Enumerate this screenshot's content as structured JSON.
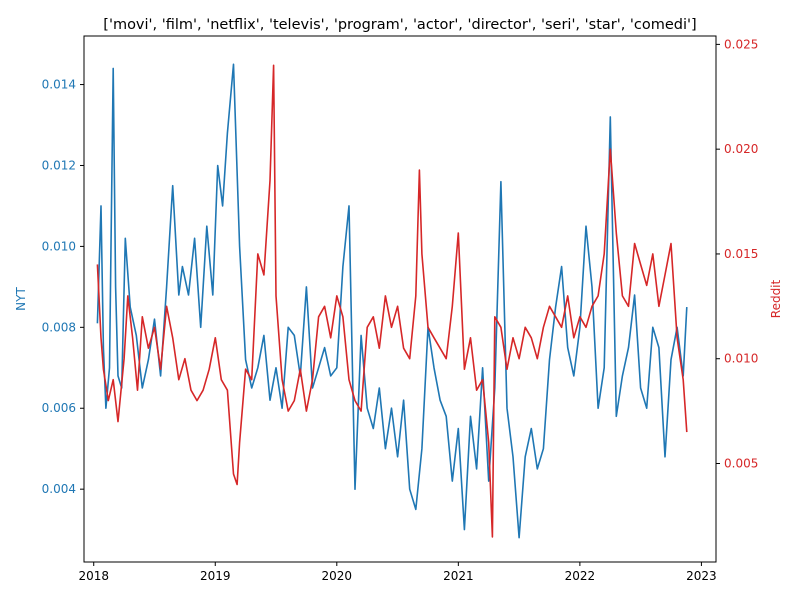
{
  "chart_data": {
    "type": "line",
    "title": "['movi', 'film', 'netflix', 'televis', 'program', 'actor', 'director', 'seri', 'star', 'comedi']",
    "xlabel": "",
    "xlim": [
      2017.92,
      2023.12
    ],
    "x_ticks": [
      "2018",
      "2019",
      "2020",
      "2021",
      "2022",
      "2023"
    ],
    "grid": false,
    "legend": "none",
    "y_axes": {
      "left": {
        "label": "NYT",
        "color": "#1f77b4",
        "ylim": [
          0.0022,
          0.0152
        ],
        "ticks": [
          "0.004",
          "0.006",
          "0.008",
          "0.010",
          "0.012",
          "0.014"
        ]
      },
      "right": {
        "label": "Reddit",
        "color": "#d62728",
        "ylim": [
          0.0003,
          0.0254
        ],
        "ticks": [
          "0.005",
          "0.010",
          "0.015",
          "0.020",
          "0.025"
        ]
      }
    },
    "series": [
      {
        "axis": "left",
        "color": "#1f77b4",
        "x": [
          2018.03,
          2018.06,
          2018.08,
          2018.1,
          2018.13,
          2018.16,
          2018.18,
          2018.2,
          2018.23,
          2018.26,
          2018.3,
          2018.35,
          2018.4,
          2018.45,
          2018.5,
          2018.55,
          2018.6,
          2018.65,
          2018.7,
          2018.73,
          2018.78,
          2018.83,
          2018.88,
          2018.93,
          2018.98,
          2019.02,
          2019.06,
          2019.1,
          2019.15,
          2019.2,
          2019.25,
          2019.3,
          2019.35,
          2019.4,
          2019.45,
          2019.5,
          2019.55,
          2019.6,
          2019.65,
          2019.7,
          2019.75,
          2019.8,
          2019.85,
          2019.9,
          2019.95,
          2020.0,
          2020.05,
          2020.1,
          2020.15,
          2020.2,
          2020.25,
          2020.3,
          2020.35,
          2020.4,
          2020.45,
          2020.5,
          2020.55,
          2020.6,
          2020.65,
          2020.7,
          2020.75,
          2020.8,
          2020.85,
          2020.9,
          2020.95,
          2021.0,
          2021.05,
          2021.1,
          2021.15,
          2021.2,
          2021.25,
          2021.3,
          2021.35,
          2021.4,
          2021.45,
          2021.5,
          2021.55,
          2021.6,
          2021.65,
          2021.7,
          2021.75,
          2021.8,
          2021.85,
          2021.9,
          2021.95,
          2022.0,
          2022.05,
          2022.1,
          2022.15,
          2022.2,
          2022.25,
          2022.3,
          2022.35,
          2022.4,
          2022.45,
          2022.5,
          2022.55,
          2022.6,
          2022.65,
          2022.7,
          2022.75,
          2022.8,
          2022.85,
          2022.88
        ],
        "values": [
          0.0081,
          0.011,
          0.0075,
          0.006,
          0.007,
          0.0144,
          0.009,
          0.0068,
          0.0065,
          0.0102,
          0.0085,
          0.0078,
          0.0065,
          0.0072,
          0.0082,
          0.0068,
          0.009,
          0.0115,
          0.0088,
          0.0095,
          0.0088,
          0.0102,
          0.008,
          0.0105,
          0.0088,
          0.012,
          0.011,
          0.0128,
          0.0145,
          0.01,
          0.0072,
          0.0065,
          0.007,
          0.0078,
          0.0062,
          0.007,
          0.006,
          0.008,
          0.0078,
          0.0068,
          0.009,
          0.0065,
          0.007,
          0.0075,
          0.0068,
          0.007,
          0.0095,
          0.011,
          0.004,
          0.0078,
          0.006,
          0.0055,
          0.0065,
          0.005,
          0.006,
          0.0048,
          0.0062,
          0.004,
          0.0035,
          0.005,
          0.008,
          0.007,
          0.0062,
          0.0058,
          0.0042,
          0.0055,
          0.003,
          0.0058,
          0.0045,
          0.007,
          0.0042,
          0.0065,
          0.0116,
          0.006,
          0.0048,
          0.0028,
          0.0048,
          0.0055,
          0.0045,
          0.005,
          0.0072,
          0.0085,
          0.0095,
          0.0075,
          0.0068,
          0.008,
          0.0105,
          0.009,
          0.006,
          0.007,
          0.0132,
          0.0058,
          0.0068,
          0.0075,
          0.0088,
          0.0065,
          0.006,
          0.008,
          0.0075,
          0.0048,
          0.0072,
          0.008,
          0.0068,
          0.0085
        ]
      },
      {
        "axis": "right",
        "color": "#d62728",
        "x": [
          2018.03,
          2018.06,
          2018.08,
          2018.12,
          2018.16,
          2018.2,
          2018.25,
          2018.28,
          2018.32,
          2018.36,
          2018.4,
          2018.45,
          2018.5,
          2018.55,
          2018.6,
          2018.65,
          2018.7,
          2018.75,
          2018.8,
          2018.85,
          2018.9,
          2018.95,
          2019.0,
          2019.05,
          2019.1,
          2019.15,
          2019.18,
          2019.2,
          2019.25,
          2019.3,
          2019.35,
          2019.4,
          2019.45,
          2019.48,
          2019.5,
          2019.55,
          2019.6,
          2019.65,
          2019.7,
          2019.75,
          2019.8,
          2019.85,
          2019.9,
          2019.95,
          2020.0,
          2020.05,
          2020.1,
          2020.15,
          2020.2,
          2020.25,
          2020.3,
          2020.35,
          2020.4,
          2020.45,
          2020.5,
          2020.55,
          2020.6,
          2020.65,
          2020.68,
          2020.7,
          2020.75,
          2020.8,
          2020.85,
          2020.9,
          2020.95,
          2021.0,
          2021.05,
          2021.1,
          2021.15,
          2021.2,
          2021.25,
          2021.28,
          2021.3,
          2021.35,
          2021.4,
          2021.45,
          2021.5,
          2021.55,
          2021.6,
          2021.65,
          2021.7,
          2021.75,
          2021.8,
          2021.85,
          2021.9,
          2021.95,
          2022.0,
          2022.05,
          2022.1,
          2022.15,
          2022.2,
          2022.25,
          2022.3,
          2022.35,
          2022.4,
          2022.45,
          2022.5,
          2022.55,
          2022.6,
          2022.65,
          2022.7,
          2022.75,
          2022.8,
          2022.85,
          2022.88
        ],
        "values": [
          0.0145,
          0.011,
          0.0095,
          0.008,
          0.009,
          0.007,
          0.01,
          0.013,
          0.011,
          0.0085,
          0.012,
          0.0105,
          0.0115,
          0.0095,
          0.0125,
          0.011,
          0.009,
          0.01,
          0.0085,
          0.008,
          0.0085,
          0.0095,
          0.011,
          0.009,
          0.0085,
          0.0045,
          0.004,
          0.006,
          0.0095,
          0.009,
          0.015,
          0.014,
          0.0185,
          0.024,
          0.013,
          0.009,
          0.0075,
          0.008,
          0.0095,
          0.0075,
          0.009,
          0.012,
          0.0125,
          0.011,
          0.013,
          0.012,
          0.009,
          0.008,
          0.0075,
          0.0115,
          0.012,
          0.0105,
          0.013,
          0.0115,
          0.0125,
          0.0105,
          0.01,
          0.013,
          0.019,
          0.015,
          0.0115,
          0.011,
          0.0105,
          0.01,
          0.0125,
          0.016,
          0.0095,
          0.011,
          0.0085,
          0.009,
          0.006,
          0.0015,
          0.012,
          0.0115,
          0.0095,
          0.011,
          0.01,
          0.0115,
          0.011,
          0.01,
          0.0115,
          0.0125,
          0.012,
          0.0115,
          0.013,
          0.011,
          0.012,
          0.0115,
          0.0125,
          0.013,
          0.015,
          0.02,
          0.016,
          0.013,
          0.0125,
          0.0155,
          0.0145,
          0.0135,
          0.015,
          0.0125,
          0.014,
          0.0155,
          0.011,
          0.009,
          0.0065
        ]
      }
    ]
  }
}
